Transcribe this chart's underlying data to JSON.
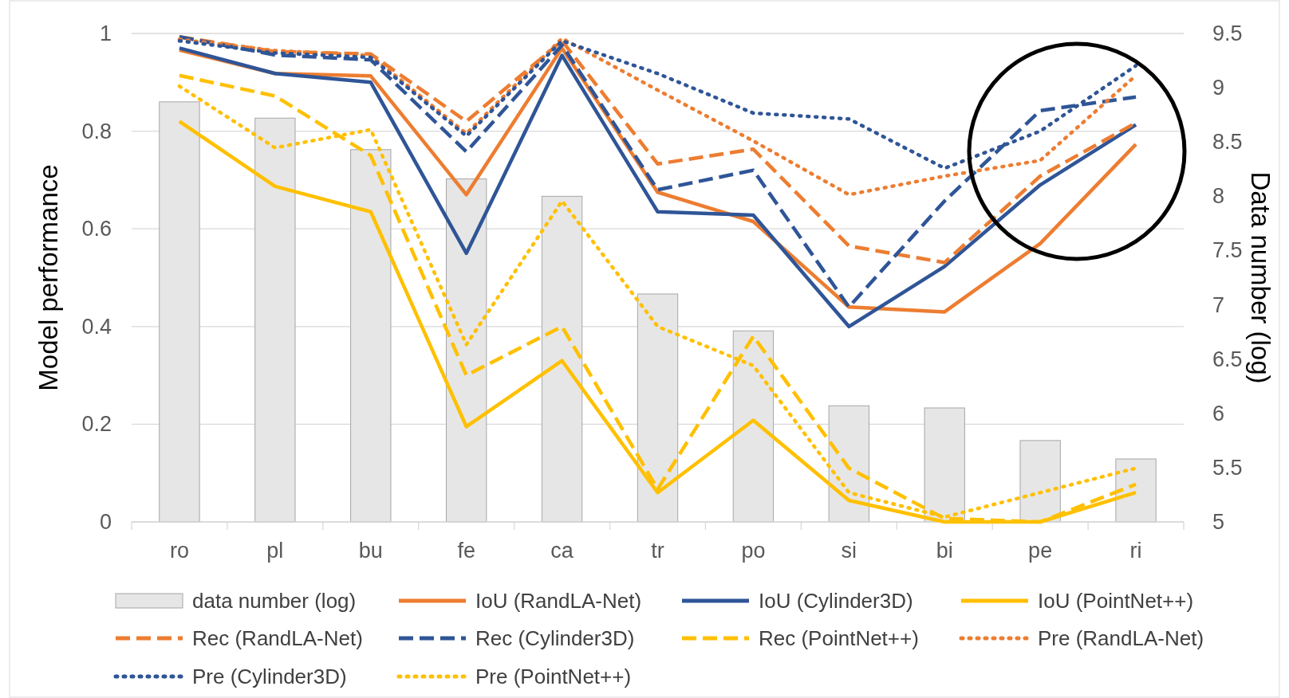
{
  "chart_data": {
    "type": "line",
    "categories": [
      "ro",
      "pl",
      "bu",
      "fe",
      "ca",
      "tr",
      "po",
      "si",
      "bi",
      "pe",
      "ri"
    ],
    "ylabel": "Model performance",
    "y2label": "Data number (log)",
    "ylim": [
      0,
      1
    ],
    "yticks": [
      0,
      {
        "value": 0.2,
        "label": "0.2"
      },
      {
        "value": 0.4,
        "label": "0.4"
      },
      {
        "value": 0.6,
        "label": "0.6"
      },
      {
        "value": 0.8,
        "label": "0.8"
      },
      1
    ],
    "y2lim": [
      5,
      9.5
    ],
    "y2ticks": [
      5,
      5.5,
      6,
      6.5,
      7,
      7.5,
      8,
      8.5,
      9,
      9.5
    ],
    "grid": "y",
    "legend": "bottom",
    "marker": "none",
    "series": [
      {
        "name": "data number (log)",
        "type": "bar",
        "axis": "y2",
        "color": "#e7e6e6",
        "values": [
          8.87,
          8.72,
          8.43,
          8.16,
          8.0,
          7.1,
          6.76,
          6.07,
          6.05,
          5.75,
          5.58
        ]
      },
      {
        "name": "IoU (RandLA-Net)",
        "color": "#ed7d31",
        "line_style": "solid",
        "values": [
          0.966,
          0.918,
          0.913,
          0.67,
          0.97,
          0.675,
          0.615,
          0.44,
          0.43,
          0.57,
          0.773
        ]
      },
      {
        "name": "IoU (Cylinder3D)",
        "color": "#2f5597",
        "line_style": "solid",
        "values": [
          0.97,
          0.918,
          0.9,
          0.55,
          0.955,
          0.635,
          0.628,
          0.4,
          0.523,
          0.69,
          0.813
        ]
      },
      {
        "name": "IoU (PointNet++)",
        "color": "#ffc000",
        "line_style": "solid",
        "values": [
          0.82,
          0.687,
          0.635,
          0.195,
          0.33,
          0.06,
          0.208,
          0.044,
          0,
          0,
          0.06
        ]
      },
      {
        "name": "Rec (RandLA-Net)",
        "color": "#ed7d31",
        "line_style": "dashed",
        "values": [
          0.993,
          0.963,
          0.958,
          0.82,
          0.985,
          0.733,
          0.763,
          0.565,
          0.531,
          0.708,
          0.817
        ]
      },
      {
        "name": "Rec (Cylinder3D)",
        "color": "#2f5597",
        "line_style": "dashed",
        "values": [
          0.993,
          0.956,
          0.946,
          0.758,
          0.976,
          0.68,
          0.72,
          0.44,
          0.657,
          0.842,
          0.87
        ]
      },
      {
        "name": "Rec (PointNet++)",
        "color": "#ffc000",
        "line_style": "dashed",
        "values": [
          0.914,
          0.872,
          0.75,
          0.3,
          0.4,
          0.067,
          0.38,
          0.11,
          0.007,
          0,
          0.077
        ]
      },
      {
        "name": "Pre (RandLA-Net)",
        "color": "#ed7d31",
        "line_style": "dotted",
        "values": [
          0.988,
          0.965,
          0.955,
          0.795,
          0.99,
          0.884,
          0.78,
          0.67,
          0.708,
          0.74,
          0.914
        ]
      },
      {
        "name": "Pre (Cylinder3D)",
        "color": "#2f5597",
        "line_style": "dotted",
        "values": [
          0.985,
          0.96,
          0.951,
          0.79,
          0.985,
          0.918,
          0.837,
          0.825,
          0.724,
          0.8,
          0.934
        ]
      },
      {
        "name": "Pre (PointNet++)",
        "color": "#ffc000",
        "line_style": "dotted",
        "values": [
          0.892,
          0.766,
          0.803,
          0.363,
          0.657,
          0.4,
          0.32,
          0.06,
          0.01,
          0.06,
          0.11
        ]
      }
    ]
  }
}
